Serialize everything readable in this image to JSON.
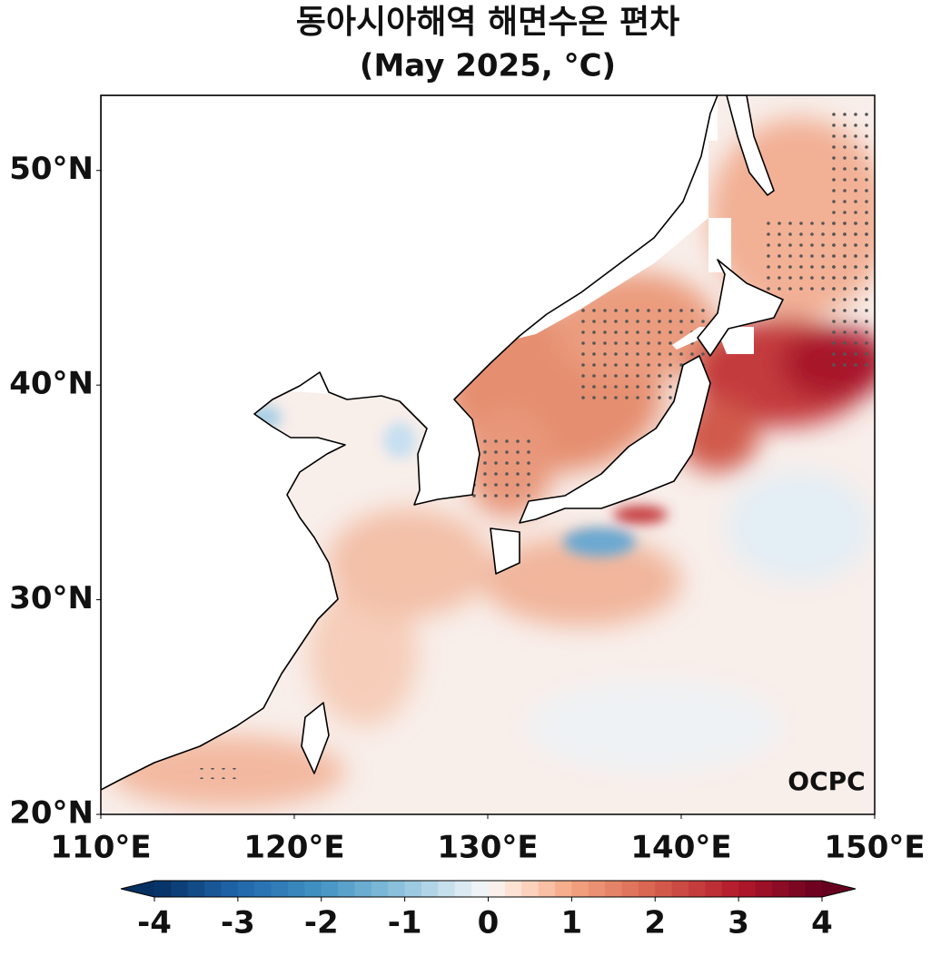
{
  "title": "동아시아해역 해면수온 편차",
  "subtitle": "(May 2025, °C)",
  "map": {
    "xlim": [
      110,
      150
    ],
    "ylim": [
      20,
      53.5
    ],
    "xticks": [
      {
        "value": 110,
        "label": "110°E"
      },
      {
        "value": 120,
        "label": "120°E"
      },
      {
        "value": 130,
        "label": "130°E"
      },
      {
        "value": 140,
        "label": "140°E"
      },
      {
        "value": 150,
        "label": "150°E"
      }
    ],
    "yticks": [
      {
        "value": 20,
        "label": "20°N"
      },
      {
        "value": 30,
        "label": "30°N"
      },
      {
        "value": 40,
        "label": "40°N"
      },
      {
        "value": 50,
        "label": "50°N"
      }
    ]
  },
  "colorbar": {
    "lim": [
      -4,
      4
    ],
    "ticks": [
      -4,
      -3,
      -2,
      -1,
      0,
      1,
      2,
      3,
      4
    ]
  },
  "logo": "OCPC"
}
